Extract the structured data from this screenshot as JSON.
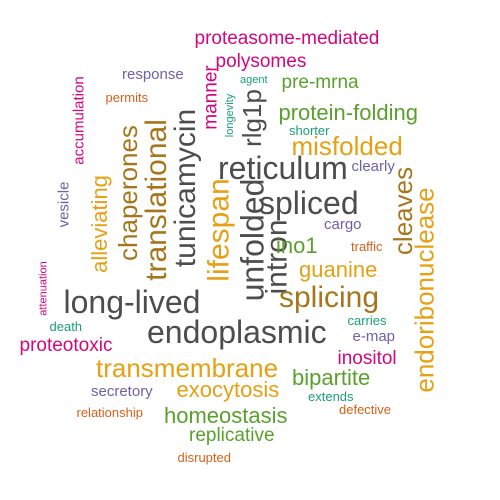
{
  "palette": {
    "gray": "#4d4d4d",
    "magenta": "#d4067d",
    "gold": "#e6a014",
    "green": "#5aa02c",
    "purple": "#6b63a8",
    "orange": "#d6601a",
    "teal": "#1b9e77",
    "brown": "#a6761d"
  },
  "words": [
    {
      "text": "proteasome-mediated",
      "color": "magenta",
      "weight": 5,
      "vertical": false
    },
    {
      "text": "polysomes",
      "color": "magenta",
      "weight": 5,
      "vertical": false
    },
    {
      "text": "response",
      "color": "purple",
      "weight": 4,
      "vertical": false
    },
    {
      "text": "agent",
      "color": "teal",
      "weight": 2,
      "vertical": false
    },
    {
      "text": "pre-mrna",
      "color": "green",
      "weight": 5,
      "vertical": false
    },
    {
      "text": "manner",
      "color": "magenta",
      "weight": 5,
      "vertical": true
    },
    {
      "text": "permits",
      "color": "orange",
      "weight": 3,
      "vertical": false
    },
    {
      "text": "accumulation",
      "color": "magenta",
      "weight": 4,
      "vertical": true
    },
    {
      "text": "longevity",
      "color": "teal",
      "weight": 2,
      "vertical": true
    },
    {
      "text": "rlg1p",
      "color": "gray",
      "weight": 7,
      "vertical": true
    },
    {
      "text": "protein-folding",
      "color": "green",
      "weight": 6,
      "vertical": false
    },
    {
      "text": "shorter",
      "color": "teal",
      "weight": 3,
      "vertical": false
    },
    {
      "text": "chaperones",
      "color": "brown",
      "weight": 7,
      "vertical": true
    },
    {
      "text": "translational",
      "color": "brown",
      "weight": 8,
      "vertical": true
    },
    {
      "text": "tunicamycin",
      "color": "gray",
      "weight": 8,
      "vertical": true
    },
    {
      "text": "misfolded",
      "color": "gold",
      "weight": 7,
      "vertical": false
    },
    {
      "text": "reticulum",
      "color": "gray",
      "weight": 9,
      "vertical": false
    },
    {
      "text": "clearly",
      "color": "purple",
      "weight": 4,
      "vertical": false
    },
    {
      "text": "alleviating",
      "color": "gold",
      "weight": 6,
      "vertical": true
    },
    {
      "text": "vesicle",
      "color": "purple",
      "weight": 4,
      "vertical": true
    },
    {
      "text": "lifespan",
      "color": "gold",
      "weight": 8,
      "vertical": true
    },
    {
      "text": "unfolded",
      "color": "gray",
      "weight": 9,
      "vertical": true
    },
    {
      "text": "spliced",
      "color": "gray",
      "weight": 9,
      "vertical": false
    },
    {
      "text": "cleaves",
      "color": "brown",
      "weight": 7,
      "vertical": true
    },
    {
      "text": "intron",
      "color": "gray",
      "weight": 8,
      "vertical": true
    },
    {
      "text": "cargo",
      "color": "purple",
      "weight": 4,
      "vertical": false
    },
    {
      "text": "ino1",
      "color": "green",
      "weight": 6,
      "vertical": false
    },
    {
      "text": "traffic",
      "color": "orange",
      "weight": 3,
      "vertical": false
    },
    {
      "text": "endoribonuclease",
      "color": "gold",
      "weight": 7,
      "vertical": true
    },
    {
      "text": "guanine",
      "color": "gold",
      "weight": 6,
      "vertical": false
    },
    {
      "text": "attenuation",
      "color": "magenta",
      "weight": 2,
      "vertical": true
    },
    {
      "text": "long-lived",
      "color": "gray",
      "weight": 9,
      "vertical": false
    },
    {
      "text": "splicing",
      "color": "brown",
      "weight": 8,
      "vertical": false
    },
    {
      "text": "death",
      "color": "teal",
      "weight": 3,
      "vertical": false
    },
    {
      "text": "carries",
      "color": "teal",
      "weight": 3,
      "vertical": false
    },
    {
      "text": "endoplasmic",
      "color": "gray",
      "weight": 9,
      "vertical": false
    },
    {
      "text": "e-map",
      "color": "purple",
      "weight": 4,
      "vertical": false
    },
    {
      "text": "proteotoxic",
      "color": "magenta",
      "weight": 5,
      "vertical": false
    },
    {
      "text": "inositol",
      "color": "magenta",
      "weight": 5,
      "vertical": false
    },
    {
      "text": "transmembrane",
      "color": "gold",
      "weight": 7,
      "vertical": false
    },
    {
      "text": "bipartite",
      "color": "green",
      "weight": 6,
      "vertical": false
    },
    {
      "text": "secretory",
      "color": "purple",
      "weight": 4,
      "vertical": false
    },
    {
      "text": "exocytosis",
      "color": "gold",
      "weight": 6,
      "vertical": false
    },
    {
      "text": "extends",
      "color": "teal",
      "weight": 3,
      "vertical": false
    },
    {
      "text": "relationship",
      "color": "orange",
      "weight": 3,
      "vertical": false
    },
    {
      "text": "homeostasis",
      "color": "green",
      "weight": 6,
      "vertical": false
    },
    {
      "text": "defective",
      "color": "orange",
      "weight": 3,
      "vertical": false
    },
    {
      "text": "replicative",
      "color": "green",
      "weight": 5,
      "vertical": false
    },
    {
      "text": "disrupted",
      "color": "orange",
      "weight": 3,
      "vertical": false
    }
  ]
}
